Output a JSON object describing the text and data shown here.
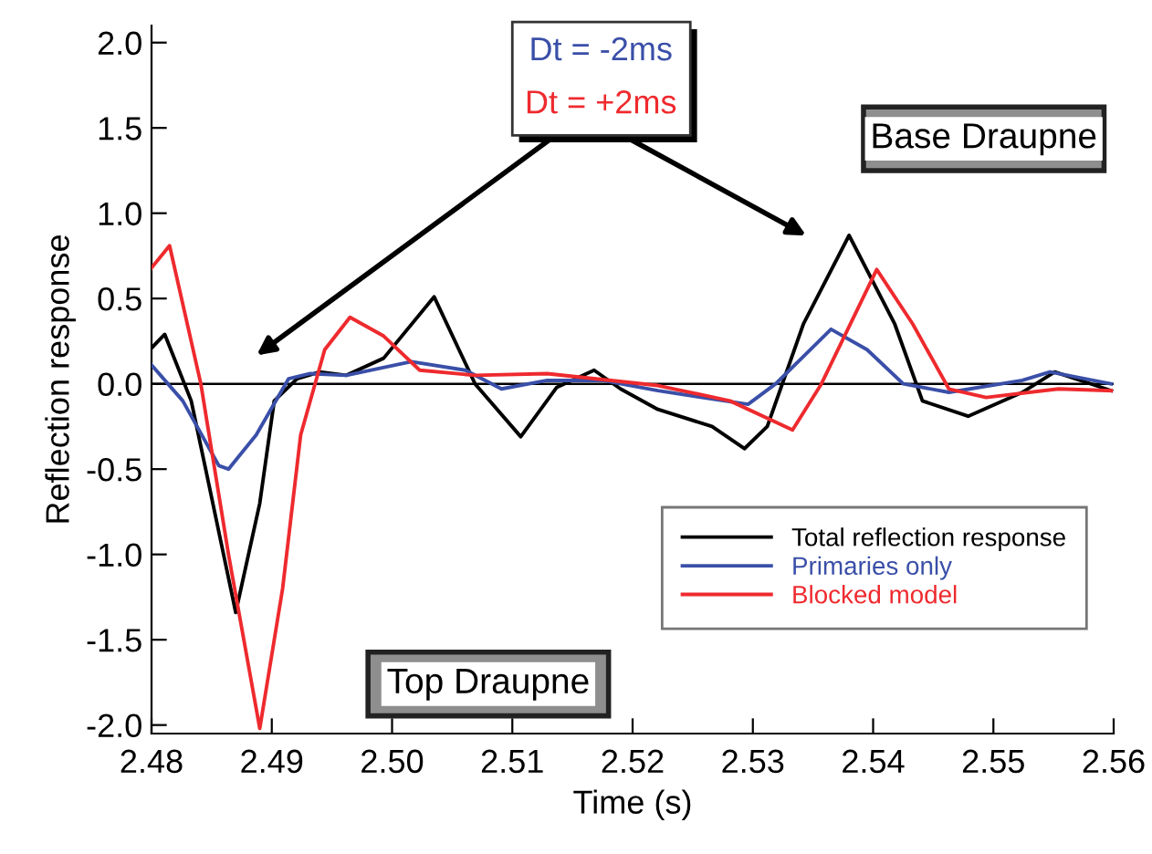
{
  "chart_data": {
    "type": "line",
    "xlabel": "Time (s)",
    "ylabel": "Reflection response",
    "xlim": [
      2.48,
      2.56
    ],
    "ylim": [
      -2.05,
      2.1
    ],
    "xticks": [
      {
        "value": 2.48,
        "label": "2.48"
      },
      {
        "value": 2.49,
        "label": "2.49"
      },
      {
        "value": 2.5,
        "label": "2.50"
      },
      {
        "value": 2.51,
        "label": "2.51"
      },
      {
        "value": 2.52,
        "label": "2.52"
      },
      {
        "value": 2.53,
        "label": "2.53"
      },
      {
        "value": 2.54,
        "label": "2.54"
      },
      {
        "value": 2.55,
        "label": "2.55"
      },
      {
        "value": 2.56,
        "label": "2.56"
      }
    ],
    "yticks": [
      {
        "value": -2,
        "label": "-2.0"
      },
      {
        "value": -1.5,
        "label": "-1.5"
      },
      {
        "value": -1,
        "label": "-1.0"
      },
      {
        "value": -0.5,
        "label": "-0.5"
      },
      {
        "value": 0,
        "label": "0.0"
      },
      {
        "value": 0.5,
        "label": "0.5"
      },
      {
        "value": 1,
        "label": "1.0"
      },
      {
        "value": 1.5,
        "label": "1.5"
      },
      {
        "value": 2,
        "label": "2.0"
      }
    ],
    "grid": false,
    "legend": "bottom right",
    "marker": "none",
    "line_style": "solid",
    "ref_lines": [
      {
        "axis": "y",
        "value": 0,
        "label": null,
        "color": "#000000"
      }
    ],
    "annotations": [
      "Dt = -2ms",
      "Dt = +2ms",
      "Base Draupne",
      "Top Draupne"
    ],
    "series": [
      {
        "name": "Total reflection response",
        "color": "#000000",
        "x": [
          2.48,
          2.4811,
          2.4833,
          2.4845,
          2.487,
          2.489,
          2.4902,
          2.4921,
          2.494,
          2.4962,
          2.4993,
          2.5035,
          2.5069,
          2.5107,
          2.5137,
          2.5168,
          2.519,
          2.5221,
          2.5266,
          2.5293,
          2.5312,
          2.5342,
          2.538,
          2.5418,
          2.5441,
          2.5479,
          2.5524,
          2.5551,
          2.5598
        ],
        "values": [
          0.21,
          0.29,
          -0.1,
          -0.5,
          -1.34,
          -0.7,
          -0.1,
          0.03,
          0.07,
          0.05,
          0.15,
          0.51,
          0.0,
          -0.31,
          -0.02,
          0.08,
          -0.03,
          -0.15,
          -0.25,
          -0.38,
          -0.25,
          0.35,
          0.87,
          0.35,
          -0.1,
          -0.19,
          -0.05,
          0.07,
          -0.04
        ]
      },
      {
        "name": "Primaries only",
        "color": "#3a4fa8",
        "x": [
          2.48,
          2.4826,
          2.4856,
          2.4864,
          2.4887,
          2.4914,
          2.4932,
          2.4962,
          2.5016,
          2.5061,
          2.5091,
          2.5129,
          2.5175,
          2.5221,
          2.5296,
          2.5319,
          2.5365,
          2.5395,
          2.5425,
          2.5463,
          2.5524,
          2.5547,
          2.5598
        ],
        "values": [
          0.11,
          -0.1,
          -0.48,
          -0.5,
          -0.3,
          0.03,
          0.06,
          0.05,
          0.13,
          0.08,
          -0.03,
          0.02,
          0.02,
          -0.04,
          -0.12,
          0.0,
          0.32,
          0.2,
          0.0,
          -0.05,
          0.02,
          0.07,
          0.0
        ]
      },
      {
        "name": "Blocked model",
        "color": "#ee2a2e",
        "x": [
          2.48,
          2.4815,
          2.4841,
          2.4864,
          2.489,
          2.4909,
          2.4924,
          2.4944,
          2.4965,
          2.4993,
          2.5023,
          2.5069,
          2.5129,
          2.5221,
          2.5281,
          2.5333,
          2.5357,
          2.5403,
          2.5433,
          2.5463,
          2.5494,
          2.5554,
          2.5598
        ],
        "values": [
          0.68,
          0.81,
          0.0,
          -1.0,
          -2.02,
          -1.2,
          -0.3,
          0.2,
          0.39,
          0.28,
          0.08,
          0.05,
          0.06,
          -0.01,
          -0.1,
          -0.27,
          0.0,
          0.67,
          0.35,
          -0.03,
          -0.08,
          -0.03,
          -0.04
        ]
      }
    ]
  }
}
